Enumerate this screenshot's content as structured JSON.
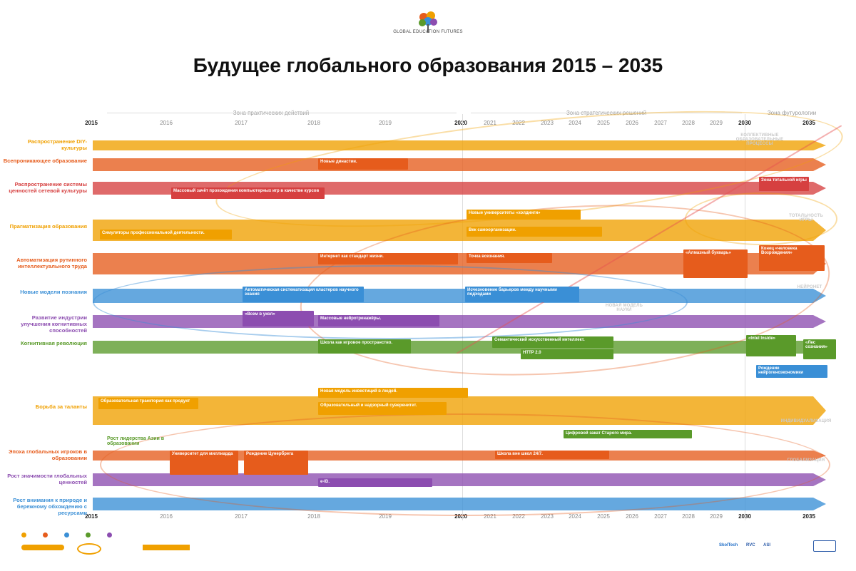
{
  "header": {
    "logo_text": "GLOBAL EDUCATION FUTURES",
    "title": "Будущее глобального образования 2015 – 2035"
  },
  "zones": {
    "practical": "Зона практических действий",
    "strategic": "Зона стратегических решений",
    "futurology": "Зона футурологии"
  },
  "years": [
    "2015",
    "2016",
    "2017",
    "2018",
    "2019",
    "2020",
    "2021",
    "2022",
    "2023",
    "2024",
    "2025",
    "2026",
    "2027",
    "2028",
    "2029",
    "2030",
    "2035"
  ],
  "rows": [
    {
      "id": "diy",
      "label": "Распространение DIY-культуры",
      "color": "#f0a000"
    },
    {
      "id": "ubiq",
      "label": "Всепроникающее образование",
      "color": "#e65c1c"
    },
    {
      "id": "network",
      "label": "Распространение системы ценностей сетевой культуры",
      "color": "#d64040"
    },
    {
      "id": "gamif",
      "label": "Прагматизация образования",
      "color": "#f0a000"
    },
    {
      "id": "autom",
      "label": "Автоматизация рутинного интеллектуального труда",
      "color": "#e65c1c"
    },
    {
      "id": "science",
      "label": "Новые модели познания",
      "color": "#3a8fd6"
    },
    {
      "id": "cognitive",
      "label": "Развитие индустрии улучшения когнитивных способностей",
      "color": "#8c4db0"
    },
    {
      "id": "cogrev",
      "label": "Когнитивная революция",
      "color": "#5a9a2a"
    },
    {
      "id": "talent",
      "label": "Борьба за таланты",
      "color": "#f0a000"
    },
    {
      "id": "global",
      "label": "Эпоха глобальных игроков в образовании",
      "color": "#e65c1c"
    },
    {
      "id": "globalval",
      "label": "Рост значимости глобальных ценностей",
      "color": "#8c4db0"
    },
    {
      "id": "nature",
      "label": "Рост внимания к природе и бережному обхождению с ресурсами",
      "color": "#3a8fd6"
    }
  ],
  "cards": {
    "c1": "Новые династии.",
    "c2": "Массовый зачёт прохождения компьютерных игр в качестве курсов",
    "c3": "Симуляторы профессиональной деятельности.",
    "c4": "Интернет как стандарт жизни.",
    "c5": "Новые университеты «холдинги»",
    "c6": "Век самоорганизации.",
    "c7": "Автоматическая систематизация кластеров научного знания",
    "c8": "Исчезновение барьеров между научными подходами",
    "c9": "«Всем в укол»",
    "c10": "Массовые нейротренажёры.",
    "c11": "Школа как игровое пространство.",
    "c12": "Семантический искусственный интеллект.",
    "c13": "HTTP 2.0",
    "c14": "Образовательная траектория как продукт",
    "c15": "Новая модель инвестиций в людей.",
    "c16": "Образовательный и надзорный суверенитет.",
    "c17": "Цифровой закат Старого мира.",
    "c18": "Университет для миллиарда",
    "c19": "Рождение Цунербрега",
    "c20": "Школа вне школ 24/7.",
    "c21": "e-ID.",
    "c22": "«Алмазный букварь»",
    "c23": "Конец «человека Возрождения»",
    "c24": "«Intel Inside»",
    "c25": "«Лес сознания»",
    "c26": "Рождение нейрогеноэкономики",
    "c27": "Зона тотальной игры",
    "c28": "Точка всезнания.",
    "c29": "Рост лидерства Азии в образовании"
  },
  "annotations": {
    "a1": "КОЛЛЕКТИВНЫЕ ОБРАЗОВАТЕЛЬНЫЕ ПРОЦЕССЫ",
    "a2": "ТОТАЛЬНОСТЬ ИГРЫ",
    "a3": "НЕЙРОНЕТ",
    "a4": "НОВАЯ МОДЕЛЬ НАУКИ",
    "a5": "ИНДИВИДУАЛИЗАЦИЯ",
    "a6": "ГЛОБАЛИЗАЦИЯ"
  },
  "footer": {
    "sponsors": [
      "SkolTech",
      "RVC",
      "ASI",
      "Global Education Futures"
    ]
  }
}
